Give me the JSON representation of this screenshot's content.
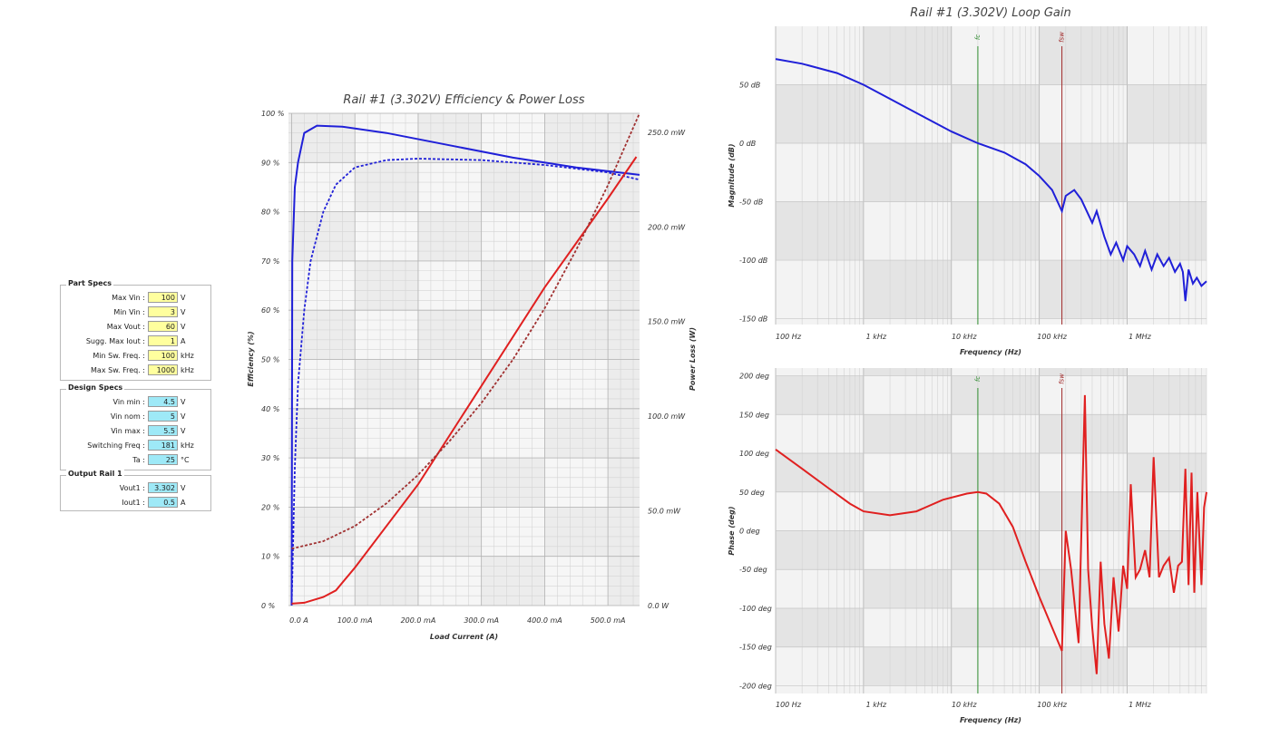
{
  "panels": {
    "part_specs": {
      "title": "Part Specs",
      "rows": [
        {
          "label": "Max Vin :",
          "value": "100",
          "unit": "V"
        },
        {
          "label": "Min Vin :",
          "value": "3",
          "unit": "V"
        },
        {
          "label": "Max Vout :",
          "value": "60",
          "unit": "V"
        },
        {
          "label": "Sugg. Max Iout :",
          "value": "1",
          "unit": "A"
        },
        {
          "label": "Min Sw. Freq. :",
          "value": "100",
          "unit": "kHz"
        },
        {
          "label": "Max Sw. Freq. :",
          "value": "1000",
          "unit": "kHz"
        }
      ]
    },
    "design_specs": {
      "title": "Design Specs",
      "rows": [
        {
          "label": "Vin min :",
          "value": "4.5",
          "unit": "V"
        },
        {
          "label": "Vin nom :",
          "value": "5",
          "unit": "V"
        },
        {
          "label": "Vin max :",
          "value": "5.5",
          "unit": "V"
        },
        {
          "label": "Switching Freq :",
          "value": "181",
          "unit": "kHz"
        },
        {
          "label": "Ta :",
          "value": "25",
          "unit": "°C"
        }
      ]
    },
    "output_rail": {
      "title": "Output Rail 1",
      "rows": [
        {
          "label": "Vout1 :",
          "value": "3.302",
          "unit": "V"
        },
        {
          "label": "Iout1 :",
          "value": "0.5",
          "unit": "A"
        }
      ]
    }
  },
  "colors": {
    "blue": "#2020d8",
    "red": "#e02020",
    "darkred": "#a03030",
    "green": "#2d8a2d",
    "marker_red": "#a02828",
    "yellow": "#ffff9e",
    "cyan": "#9ee9f7"
  },
  "chart_data": [
    {
      "type": "line",
      "title": "Rail #1 (3.302V) Efficiency & Power Loss",
      "xlabel": "Load Current (A)",
      "ylabel": "Efficiency (%)",
      "y2label": "Power Loss (W)",
      "xlim": [
        -0.005,
        0.55
      ],
      "ylim": [
        0,
        100
      ],
      "y2lim": [
        0,
        0.26
      ],
      "xticks": [
        0,
        0.1,
        0.2,
        0.3,
        0.4,
        0.5
      ],
      "xtick_labels": [
        "0.0 A",
        "100.0 mA",
        "200.0 mA",
        "300.0 mA",
        "400.0 mA",
        "500.0 mA"
      ],
      "yticks": [
        0,
        10,
        20,
        30,
        40,
        50,
        60,
        70,
        80,
        90,
        100
      ],
      "ytick_labels": [
        "0 %",
        "10 %",
        "20 %",
        "30 %",
        "40 %",
        "50 %",
        "60 %",
        "70 %",
        "80 %",
        "90 %",
        "100 %"
      ],
      "y2ticks": [
        0,
        0.05,
        0.1,
        0.15,
        0.2,
        0.25
      ],
      "y2tick_labels": [
        "0.0 W",
        "50.0 mW",
        "100.0 mW",
        "150.0 mW",
        "200.0 mW",
        "250.0 mW"
      ],
      "grid": true,
      "series": [
        {
          "axis": "y",
          "style": "solid",
          "color": "#2020d8",
          "x": [
            0,
            0.001,
            0.005,
            0.01,
            0.02,
            0.04,
            0.08,
            0.15,
            0.25,
            0.35,
            0.45,
            0.55
          ],
          "y": [
            0,
            70,
            85,
            90,
            96,
            97.5,
            97.3,
            96,
            93.5,
            91,
            89,
            87.5
          ]
        },
        {
          "axis": "y",
          "style": "dashed",
          "color": "#2020d8",
          "x": [
            0,
            0.005,
            0.01,
            0.02,
            0.03,
            0.05,
            0.07,
            0.1,
            0.15,
            0.2,
            0.3,
            0.4,
            0.5,
            0.55
          ],
          "y": [
            0,
            28,
            45,
            60,
            70,
            80,
            85.5,
            89,
            90.5,
            90.8,
            90.5,
            89.5,
            88,
            86.5
          ]
        },
        {
          "axis": "y2",
          "style": "solid",
          "color": "#e02020",
          "x": [
            0,
            0.02,
            0.05,
            0.07,
            0.1,
            0.2,
            0.3,
            0.4,
            0.5,
            0.545
          ],
          "y": [
            0.001,
            0.0015,
            0.0045,
            0.008,
            0.02,
            0.064,
            0.116,
            0.168,
            0.215,
            0.237
          ]
        },
        {
          "axis": "y2",
          "style": "dashed",
          "color": "#a03030",
          "x": [
            0,
            0.05,
            0.1,
            0.15,
            0.2,
            0.25,
            0.3,
            0.35,
            0.4,
            0.45,
            0.5,
            0.55
          ],
          "y": [
            0.03,
            0.034,
            0.042,
            0.054,
            0.069,
            0.087,
            0.107,
            0.13,
            0.157,
            0.188,
            0.222,
            0.26
          ]
        }
      ]
    },
    {
      "type": "line",
      "title": "Rail #1 (3.302V) Loop Gain",
      "xlabel": "Frequency (Hz)",
      "ylabel": "Magnitude (dB)",
      "xscale": "log",
      "xlim": [
        100,
        8000000
      ],
      "ylim": [
        -155,
        100
      ],
      "xticks": [
        100,
        1000,
        10000,
        100000,
        1000000
      ],
      "xtick_labels": [
        "100 Hz",
        "1 kHz",
        "10 kHz",
        "100 kHz",
        "1 MHz"
      ],
      "yticks": [
        -150,
        -100,
        -50,
        0,
        50
      ],
      "ytick_labels": [
        "-150 dB",
        "-100 dB",
        "-50 dB",
        "0 dB",
        "50 dB"
      ],
      "grid": true,
      "markers": [
        {
          "label": "fc",
          "x": 20000,
          "color": "#2d8a2d"
        },
        {
          "label": "fsw",
          "x": 181000,
          "color": "#a02828"
        }
      ],
      "series": [
        {
          "name": "Magnitude",
          "color": "#2020d8",
          "x": [
            100,
            200,
            500,
            1000,
            2000,
            5000,
            10000,
            20000,
            40000,
            70000,
            100000,
            140000,
            181000,
            200000,
            250000,
            300000,
            400000,
            450000,
            550000,
            650000,
            750000,
            900000,
            1000000,
            1200000,
            1400000,
            1600000,
            1900000,
            2200000,
            2600000,
            3000000,
            3500000,
            4000000,
            4300000,
            4600000,
            5000000,
            5600000,
            6200000,
            7000000,
            8000000
          ],
          "y": [
            72,
            68,
            60,
            50,
            38,
            22,
            10,
            0,
            -8,
            -18,
            -28,
            -40,
            -58,
            -45,
            -40,
            -48,
            -68,
            -58,
            -80,
            -95,
            -85,
            -100,
            -88,
            -95,
            -105,
            -92,
            -108,
            -95,
            -105,
            -98,
            -110,
            -103,
            -110,
            -135,
            -108,
            -120,
            -115,
            -122,
            -118
          ]
        }
      ]
    },
    {
      "type": "line",
      "xlabel": "Frequency (Hz)",
      "ylabel": "Phase (deg)",
      "xscale": "log",
      "xlim": [
        100,
        8000000
      ],
      "ylim": [
        -210,
        210
      ],
      "xticks": [
        100,
        1000,
        10000,
        100000,
        1000000
      ],
      "xtick_labels": [
        "100 Hz",
        "1 kHz",
        "10 kHz",
        "100 kHz",
        "1 MHz"
      ],
      "yticks": [
        -200,
        -150,
        -100,
        -50,
        0,
        50,
        100,
        150,
        200
      ],
      "ytick_labels": [
        "-200 deg",
        "-150 deg",
        "-100 deg",
        "-50 deg",
        "0 deg",
        "50 deg",
        "100 deg",
        "150 deg",
        "200 deg"
      ],
      "grid": true,
      "markers": [
        {
          "label": "fc",
          "x": 20000,
          "color": "#2d8a2d"
        },
        {
          "label": "fsw",
          "x": 181000,
          "color": "#a02828"
        }
      ],
      "series": [
        {
          "name": "Phase",
          "color": "#e02020",
          "x": [
            100,
            200,
            400,
            700,
            1000,
            2000,
            4000,
            8000,
            15000,
            20000,
            25000,
            35000,
            50000,
            70000,
            100000,
            140000,
            181000,
            200000,
            230000,
            280000,
            330000,
            360000,
            400000,
            450000,
            500000,
            550000,
            620000,
            700000,
            800000,
            900000,
            1000000,
            1100000,
            1250000,
            1400000,
            1600000,
            1800000,
            2000000,
            2300000,
            2600000,
            3000000,
            3400000,
            3800000,
            4200000,
            4600000,
            5000000,
            5400000,
            5800000,
            6300000,
            7000000,
            7500000,
            8000000
          ],
          "y": [
            105,
            80,
            55,
            35,
            25,
            20,
            25,
            40,
            48,
            50,
            48,
            35,
            5,
            -40,
            -85,
            -125,
            -155,
            0,
            -50,
            -145,
            175,
            -50,
            -125,
            -185,
            -40,
            -120,
            -165,
            -60,
            -130,
            -45,
            -75,
            60,
            -60,
            -50,
            -25,
            -60,
            95,
            -60,
            -45,
            -35,
            -80,
            -45,
            -40,
            80,
            -70,
            75,
            -80,
            50,
            -70,
            30,
            50
          ]
        }
      ]
    }
  ]
}
